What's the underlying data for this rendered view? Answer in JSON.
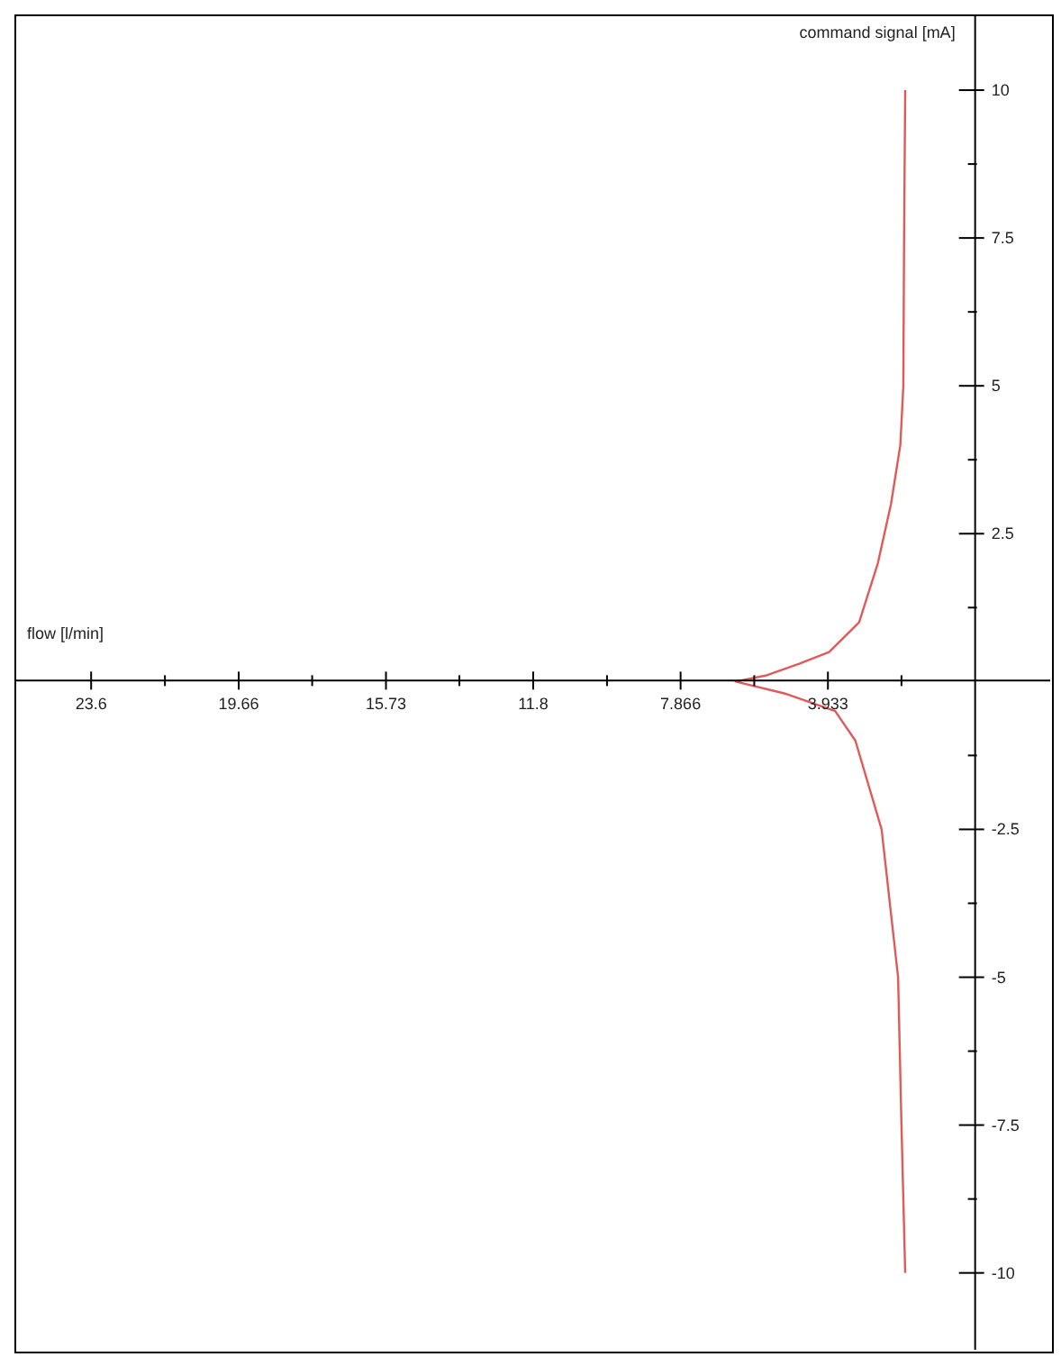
{
  "chart_data": {
    "type": "line",
    "xlabel": "flow [l/min]",
    "ylabel": "command signal [mA]",
    "xlim": [
      25.6,
      -2
    ],
    "ylim": [
      -11.3,
      11.25
    ],
    "xticks": [
      23.6,
      {
        "value": 21.63,
        "label": null
      },
      19.66,
      {
        "value": 17.7,
        "label": null
      },
      15.73,
      {
        "value": 13.77,
        "label": null
      },
      11.8,
      {
        "value": 9.83,
        "label": null
      },
      7.866,
      {
        "value": 5.9,
        "label": null
      },
      3.933,
      {
        "value": 1.97,
        "label": null
      }
    ],
    "yticks": [
      {
        "value": -10,
        "label": "-10"
      },
      {
        "value": -8.75,
        "label": null
      },
      {
        "value": -7.5,
        "label": "-7.5"
      },
      {
        "value": -6.25,
        "label": null
      },
      {
        "value": -5,
        "label": "-5"
      },
      {
        "value": -3.75,
        "label": null
      },
      {
        "value": -2.5,
        "label": "-2.5"
      },
      {
        "value": -1.25,
        "label": null
      },
      {
        "value": 1.25,
        "label": null
      },
      {
        "value": 2.5,
        "label": "2.5"
      },
      {
        "value": 3.75,
        "label": null
      },
      {
        "value": 5,
        "label": "5"
      },
      {
        "value": 6.25,
        "label": null
      },
      {
        "value": 7.5,
        "label": "7.5"
      },
      {
        "value": 8.75,
        "label": null
      },
      {
        "value": 10,
        "label": "10"
      }
    ],
    "x": [
      1.87,
      1.9,
      1.92,
      2.0,
      2.25,
      2.6,
      3.1,
      3.9,
      4.7,
      5.6,
      6.4,
      5.1,
      3.74,
      3.2,
      2.5,
      2.06,
      1.97,
      1.87
    ],
    "series": [
      {
        "color": "#e05a5a",
        "values": [
          10,
          7.5,
          5,
          4,
          3,
          2,
          1,
          0.5,
          0.3,
          0.1,
          0,
          -0.2,
          -0.5,
          -1,
          -2.5,
          -5,
          -7.5,
          -10
        ]
      }
    ],
    "grid": false,
    "legend": false,
    "marker": "none",
    "line_style": "solid"
  }
}
